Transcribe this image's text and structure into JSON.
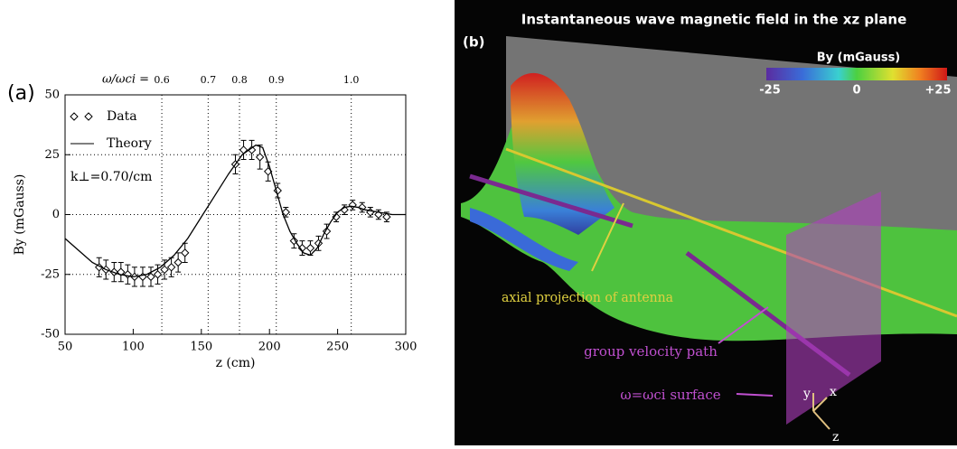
{
  "chart_data": {
    "type": "errorbar",
    "panel_label": "(a)",
    "x2label": "ω/ωci =",
    "xlabel": "z (cm)",
    "ylabel": "By (mGauss)",
    "xlim": [
      50,
      300
    ],
    "ylim": [
      -50,
      50
    ],
    "xticks": [
      50,
      100,
      150,
      200,
      250,
      300
    ],
    "yticks": [
      -50,
      -25,
      0,
      25,
      50
    ],
    "x2ticks": [
      {
        "value": 121,
        "label": "0.6"
      },
      {
        "value": 155,
        "label": "0.7"
      },
      {
        "value": 178,
        "label": "0.8"
      },
      {
        "value": 205,
        "label": "0.9"
      },
      {
        "value": 260,
        "label": "1.0"
      }
    ],
    "grid": true,
    "annotation": "k⊥=0.70/cm",
    "series": [
      {
        "name": "Data",
        "color": "#000000",
        "x": [
          75,
          80,
          86,
          91,
          96,
          101,
          107,
          113,
          118,
          123,
          128,
          133,
          138,
          175,
          181,
          187,
          193,
          199,
          206,
          212,
          218,
          224,
          230,
          236,
          242,
          249,
          255,
          261,
          268,
          274,
          280,
          286
        ],
        "values": [
          -22,
          -23,
          -24,
          -24,
          -25,
          -26,
          -26,
          -26,
          -25,
          -23,
          -22,
          -20,
          -16,
          21,
          27,
          27,
          24,
          18,
          10,
          1,
          -11,
          -14,
          -14,
          -12,
          -7,
          -1,
          2,
          4,
          3,
          1,
          0,
          -1
        ],
        "errors": [
          4,
          4,
          4,
          4,
          4,
          4,
          4,
          4,
          4,
          4,
          4,
          4,
          4,
          4,
          4,
          4,
          5,
          4,
          3,
          2,
          3,
          3,
          3,
          3,
          3,
          2,
          2,
          2,
          2,
          2,
          2,
          2
        ]
      },
      {
        "name": "Theory",
        "color": "#000000",
        "x": [
          50,
          60,
          70,
          80,
          90,
          100,
          110,
          120,
          130,
          140,
          150,
          160,
          170,
          180,
          190,
          195,
          200,
          205,
          210,
          215,
          220,
          225,
          230,
          235,
          240,
          245,
          250,
          255,
          260,
          265,
          270,
          280,
          290,
          300
        ],
        "values": [
          -10,
          -15,
          -20,
          -23,
          -25,
          -26,
          -25,
          -22,
          -17,
          -10,
          -1,
          8,
          17,
          25,
          29,
          28,
          20,
          10,
          0,
          -7,
          -12,
          -16,
          -17,
          -14,
          -8,
          -3,
          1,
          3,
          3.5,
          3,
          2,
          1,
          0,
          0
        ]
      }
    ]
  },
  "panel_b": {
    "label": "(b)",
    "title": "Instantaneous wave magnetic field in the xz plane",
    "colorbar_title": "By (mGauss)",
    "colorbar_labels": [
      "-25",
      "0",
      "+25"
    ],
    "annotations": [
      "axial projection of antenna",
      "group velocity path",
      "ω=ωci surface"
    ],
    "axes": [
      "y",
      "x",
      "z"
    ]
  }
}
